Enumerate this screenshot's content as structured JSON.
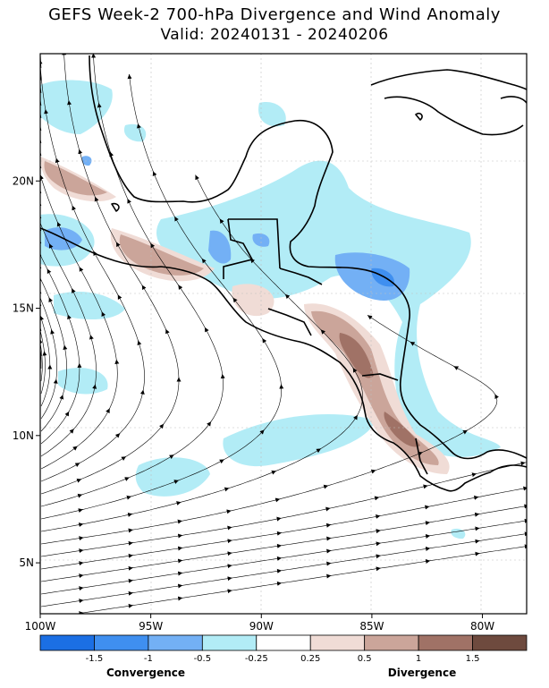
{
  "title": "GEFS Week-2 700-hPa Divergence and Wind Anomaly",
  "subtitle": "Valid: 20240131 - 20240206",
  "map": {
    "lon_range": [
      -100,
      -78
    ],
    "lat_range": [
      3,
      25
    ],
    "lon_ticks": [
      "100W",
      "95W",
      "90W",
      "85W",
      "80W"
    ],
    "lat_ticks": [
      "5N",
      "10N",
      "15N",
      "20N"
    ],
    "grid": true,
    "vector_field": "wind-anomaly-streamlines"
  },
  "colorbar": {
    "tick_labels": [
      "-1.5",
      "-1",
      "-0.5",
      "-0.25",
      "0.25",
      "0.5",
      "1",
      "1.5"
    ],
    "colors": [
      "#1b6fe4",
      "#3f8ff0",
      "#73b0f5",
      "#b2ecf6",
      "#ffffff",
      "#f0dcd6",
      "#cba59a",
      "#a07266",
      "#6e4a3e"
    ],
    "left_label": "Convergence",
    "right_label": "Divergence"
  }
}
